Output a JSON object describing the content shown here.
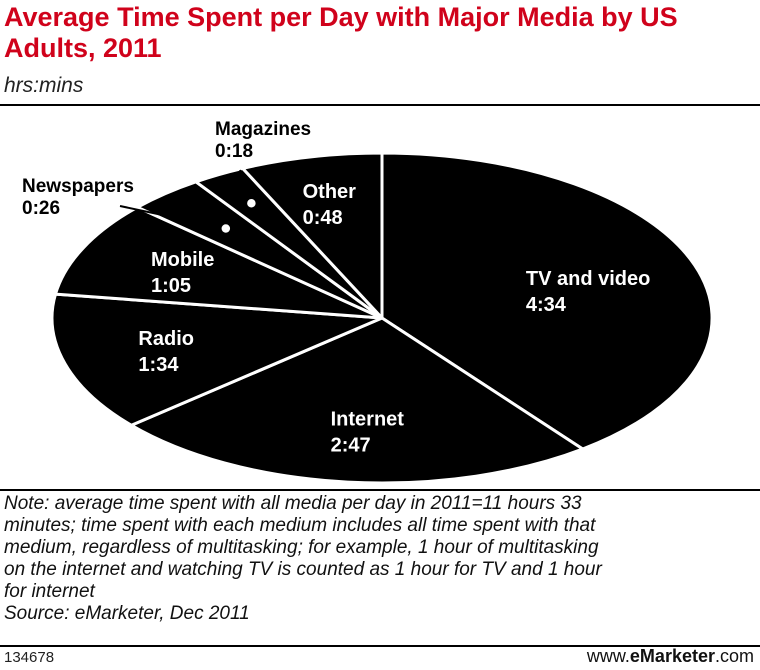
{
  "title": "Average Time Spent per Day with Major Media by US Adults, 2011",
  "subtitle": "hrs:mins",
  "chart_data": {
    "type": "pie",
    "title": "Average Time Spent per Day with Major Media by US Adults, 2011",
    "unit": "hrs:mins",
    "slices": [
      {
        "label": "TV and video",
        "value_text": "4:34",
        "minutes": 274
      },
      {
        "label": "Internet",
        "value_text": "2:47",
        "minutes": 167
      },
      {
        "label": "Radio",
        "value_text": "1:34",
        "minutes": 94
      },
      {
        "label": "Mobile",
        "value_text": "1:05",
        "minutes": 65
      },
      {
        "label": "Newspapers",
        "value_text": "0:26",
        "minutes": 26
      },
      {
        "label": "Magazines",
        "value_text": "0:18",
        "minutes": 18
      },
      {
        "label": "Other",
        "value_text": "0:48",
        "minutes": 48
      }
    ],
    "colors": {
      "fill": "#000000",
      "stroke": "#ffffff",
      "label": "#ffffff",
      "callout": "#000000"
    }
  },
  "note_lines": [
    "Note: average time spent with all media per day in 2011=11 hours 33",
    "minutes; time spent with each medium includes all time spent with that",
    "medium, regardless of multitasking; for example, 1 hour of multitasking",
    "on the internet and watching TV is counted as 1 hour for TV and 1 hour",
    "for internet"
  ],
  "source": "Source: eMarketer, Dec 2011",
  "chart_id": "134678",
  "brand": {
    "prefix": "www.",
    "name": "eMarketer",
    "suffix": ".com"
  },
  "colors": {
    "title": "#d0021b",
    "text": "#000000",
    "background": "#ffffff"
  }
}
